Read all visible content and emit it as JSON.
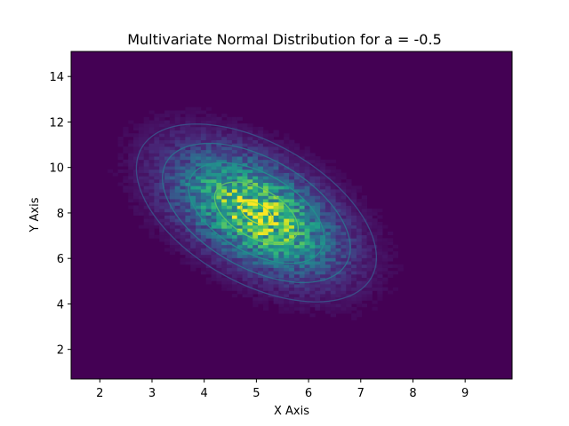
{
  "chart_data": {
    "type": "heatmap",
    "subtype": "2d-histogram-with-contours",
    "title": "Multivariate Normal Distribution for a = -0.5",
    "xlabel": "X Axis",
    "ylabel": "Y Axis",
    "xlim": [
      1.45,
      9.9
    ],
    "ylim": [
      0.7,
      15.1
    ],
    "xticks": [
      2,
      3,
      4,
      5,
      6,
      7,
      8,
      9
    ],
    "yticks": [
      2,
      4,
      6,
      8,
      10,
      12,
      14
    ],
    "distribution": {
      "mean": [
        5.0,
        8.0
      ],
      "std": [
        1.0,
        1.7
      ],
      "correlation": -0.5
    },
    "bins": [
      85,
      100
    ],
    "colormap": "viridis",
    "contour_levels_sigma": [
      0.3,
      0.8,
      1.3,
      1.8,
      2.3
    ],
    "contour_colors": [
      "#bddf26",
      "#5ec962",
      "#21918c",
      "#2c728e",
      "#3b528b"
    ],
    "grid": false,
    "legend": "none"
  }
}
